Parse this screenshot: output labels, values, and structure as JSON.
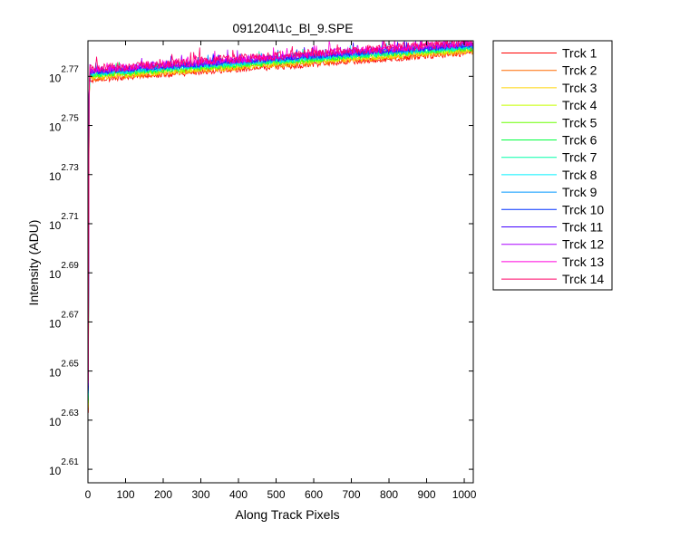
{
  "chart_data": {
    "type": "line",
    "title": "091204\\1c_Bl_9.SPE",
    "xlabel": "Along Track Pixels",
    "ylabel": "Intensity (ADU)",
    "xlim": [
      0,
      1024
    ],
    "ylim_log10": [
      2.6045,
      2.7845
    ],
    "y_scale": "log",
    "grid": false,
    "legend_placement": "outside-right",
    "x_ticks": [
      {
        "value": 0,
        "label": "0"
      },
      {
        "value": 100,
        "label": "100"
      },
      {
        "value": 200,
        "label": "200"
      },
      {
        "value": 300,
        "label": "300"
      },
      {
        "value": 400,
        "label": "400"
      },
      {
        "value": 500,
        "label": "500"
      },
      {
        "value": 600,
        "label": "600"
      },
      {
        "value": 700,
        "label": "700"
      },
      {
        "value": 800,
        "label": "800"
      },
      {
        "value": 900,
        "label": "900"
      },
      {
        "value": 1000,
        "label": "1000"
      }
    ],
    "y_ticks": [
      {
        "value": 2.61,
        "base": "10",
        "exponent": "2.61"
      },
      {
        "value": 2.63,
        "base": "10",
        "exponent": "2.63"
      },
      {
        "value": 2.65,
        "base": "10",
        "exponent": "2.65"
      },
      {
        "value": 2.67,
        "base": "10",
        "exponent": "2.67"
      },
      {
        "value": 2.69,
        "base": "10",
        "exponent": "2.69"
      },
      {
        "value": 2.71,
        "base": "10",
        "exponent": "2.71"
      },
      {
        "value": 2.73,
        "base": "10",
        "exponent": "2.73"
      },
      {
        "value": 2.75,
        "base": "10",
        "exponent": "2.75"
      },
      {
        "value": 2.77,
        "base": "10",
        "exponent": "2.77"
      }
    ],
    "series": [
      {
        "name": "Trck 1",
        "color": "#ff0000",
        "start_log10": 2.633,
        "plateau_start": 2.7685,
        "plateau_end": 2.7795,
        "noise": 0.0012
      },
      {
        "name": "Trck 2",
        "color": "#ff6a00",
        "start_log10": 2.634,
        "plateau_start": 2.769,
        "plateau_end": 2.78,
        "noise": 0.0012
      },
      {
        "name": "Trck 3",
        "color": "#ffd400",
        "start_log10": 2.635,
        "plateau_start": 2.7695,
        "plateau_end": 2.7805,
        "noise": 0.0012
      },
      {
        "name": "Trck 4",
        "color": "#c8ff00",
        "start_log10": 2.636,
        "plateau_start": 2.77,
        "plateau_end": 2.781,
        "noise": 0.0012
      },
      {
        "name": "Trck 5",
        "color": "#6aff00",
        "start_log10": 2.637,
        "plateau_start": 2.7703,
        "plateau_end": 2.7813,
        "noise": 0.0012
      },
      {
        "name": "Trck 6",
        "color": "#00ff40",
        "start_log10": 2.638,
        "plateau_start": 2.7706,
        "plateau_end": 2.7816,
        "noise": 0.0012
      },
      {
        "name": "Trck 7",
        "color": "#00ffaa",
        "start_log10": 2.639,
        "plateau_start": 2.7709,
        "plateau_end": 2.7819,
        "noise": 0.0012
      },
      {
        "name": "Trck 8",
        "color": "#00f0ff",
        "start_log10": 2.64,
        "plateau_start": 2.7712,
        "plateau_end": 2.7822,
        "noise": 0.0012
      },
      {
        "name": "Trck 9",
        "color": "#0099ff",
        "start_log10": 2.641,
        "plateau_start": 2.7715,
        "plateau_end": 2.7825,
        "noise": 0.0012
      },
      {
        "name": "Trck 10",
        "color": "#0030ff",
        "start_log10": 2.642,
        "plateau_start": 2.7718,
        "plateau_end": 2.7828,
        "noise": 0.0012
      },
      {
        "name": "Trck 11",
        "color": "#4000ff",
        "start_log10": 2.643,
        "plateau_start": 2.7721,
        "plateau_end": 2.7831,
        "noise": 0.0013
      },
      {
        "name": "Trck 12",
        "color": "#aa00ff",
        "start_log10": 2.644,
        "plateau_start": 2.7724,
        "plateau_end": 2.7834,
        "noise": 0.0014
      },
      {
        "name": "Trck 13",
        "color": "#ff00dd",
        "start_log10": 2.645,
        "plateau_start": 2.7727,
        "plateau_end": 2.7837,
        "noise": 0.0016
      },
      {
        "name": "Trck 14",
        "color": "#ff0066",
        "start_log10": 2.646,
        "plateau_start": 2.773,
        "plateau_end": 2.784,
        "noise": 0.0018
      }
    ]
  }
}
